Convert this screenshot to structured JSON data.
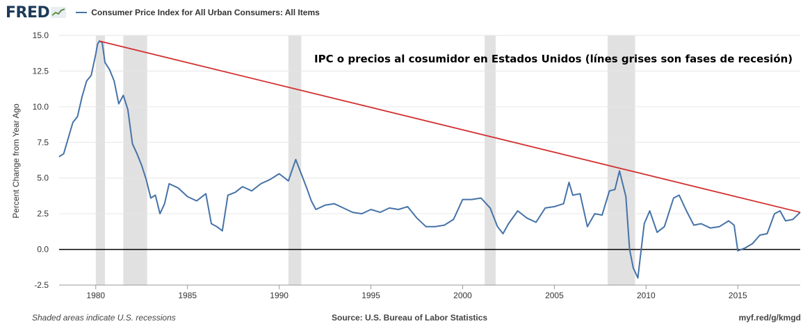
{
  "header": {
    "logo_text": "FRED",
    "logo_icon": "line-graph-icon"
  },
  "footer": {
    "note": "Shaded areas indicate U.S. recessions",
    "source": "Source: U.S. Bureau of Labor Statistics",
    "link": "myf.red/g/kmgd"
  },
  "colors": {
    "series": "#4572a7",
    "trend": "#d32f2f",
    "recession": "#e1e1e1",
    "zero_line": "#000000",
    "grid": "#e6e6e6"
  },
  "chart_data": {
    "type": "line",
    "title": "",
    "annotation": "IPC o precios al cosumidor en Estados Unidos (línes grises son fases de recesión)",
    "xlabel": "",
    "ylabel": "Percent Change from Year Ago",
    "xlim": [
      1978.0,
      2018.4
    ],
    "ylim": [
      -2.5,
      15.0
    ],
    "yticks": [
      -2.5,
      0.0,
      2.5,
      5.0,
      7.5,
      10.0,
      12.5,
      15.0
    ],
    "ytick_labels": [
      "-2.5",
      "0.0",
      "2.5",
      "5.0",
      "7.5",
      "10.0",
      "12.5",
      "15.0"
    ],
    "xticks": [
      1980,
      1985,
      1990,
      1995,
      2000,
      2005,
      2010,
      2015
    ],
    "xtick_labels": [
      "1980",
      "1985",
      "1990",
      "1995",
      "2000",
      "2005",
      "2010",
      "2015"
    ],
    "grid": "horizontal",
    "legend": "top-left",
    "recessions": [
      [
        1980.0,
        1980.5
      ],
      [
        1981.5,
        1982.8
      ],
      [
        1990.5,
        1991.2
      ],
      [
        2001.2,
        2001.8
      ],
      [
        2007.9,
        2009.4
      ]
    ],
    "zero_line": 0.0,
    "trend_line": {
      "x": [
        1980.2,
        2018.4
      ],
      "y": [
        14.6,
        2.6
      ]
    },
    "series": [
      {
        "name": "Consumer Price Index for All Urban Consumers: All Items",
        "x": [
          1978.0,
          1978.25,
          1978.5,
          1978.75,
          1979.0,
          1979.25,
          1979.5,
          1979.75,
          1980.0,
          1980.1,
          1980.2,
          1980.35,
          1980.5,
          1980.75,
          1981.0,
          1981.25,
          1981.5,
          1981.75,
          1982.0,
          1982.25,
          1982.5,
          1982.75,
          1983.0,
          1983.25,
          1983.5,
          1983.75,
          1984.0,
          1984.5,
          1985.0,
          1985.5,
          1986.0,
          1986.3,
          1986.6,
          1986.9,
          1987.2,
          1987.6,
          1988.0,
          1988.5,
          1989.0,
          1989.5,
          1990.0,
          1990.5,
          1990.9,
          1991.2,
          1991.5,
          1991.75,
          1992.0,
          1992.5,
          1993.0,
          1993.5,
          1994.0,
          1994.5,
          1995.0,
          1995.5,
          1996.0,
          1996.5,
          1997.0,
          1997.5,
          1998.0,
          1998.5,
          1999.0,
          1999.5,
          2000.0,
          2000.5,
          2001.0,
          2001.5,
          2001.9,
          2002.2,
          2002.5,
          2003.0,
          2003.5,
          2004.0,
          2004.5,
          2005.0,
          2005.5,
          2005.8,
          2006.0,
          2006.4,
          2006.8,
          2007.2,
          2007.6,
          2008.0,
          2008.3,
          2008.55,
          2008.9,
          2009.1,
          2009.3,
          2009.55,
          2009.9,
          2010.2,
          2010.6,
          2011.0,
          2011.5,
          2011.8,
          2012.2,
          2012.6,
          2013.0,
          2013.5,
          2014.0,
          2014.5,
          2014.8,
          2015.0,
          2015.4,
          2015.8,
          2016.2,
          2016.6,
          2017.0,
          2017.3,
          2017.6,
          2018.0,
          2018.4
        ],
        "values": [
          6.5,
          6.7,
          7.8,
          8.9,
          9.3,
          10.7,
          11.8,
          12.2,
          13.7,
          14.4,
          14.6,
          14.5,
          13.1,
          12.6,
          11.8,
          10.2,
          10.8,
          9.8,
          7.4,
          6.7,
          5.9,
          4.9,
          3.6,
          3.8,
          2.5,
          3.2,
          4.6,
          4.3,
          3.7,
          3.4,
          3.9,
          1.8,
          1.6,
          1.3,
          3.8,
          4.0,
          4.4,
          4.1,
          4.6,
          4.9,
          5.3,
          4.8,
          6.3,
          5.3,
          4.3,
          3.4,
          2.8,
          3.1,
          3.2,
          2.9,
          2.6,
          2.5,
          2.8,
          2.6,
          2.9,
          2.8,
          3.0,
          2.2,
          1.6,
          1.6,
          1.7,
          2.1,
          3.5,
          3.5,
          3.6,
          2.9,
          1.6,
          1.1,
          1.8,
          2.7,
          2.2,
          1.9,
          2.9,
          3.0,
          3.2,
          4.7,
          3.8,
          3.9,
          1.6,
          2.5,
          2.4,
          4.1,
          4.2,
          5.5,
          3.7,
          0.0,
          -1.3,
          -2.0,
          1.8,
          2.7,
          1.2,
          1.6,
          3.6,
          3.8,
          2.7,
          1.7,
          1.8,
          1.5,
          1.6,
          2.0,
          1.7,
          -0.1,
          0.1,
          0.4,
          1.0,
          1.1,
          2.5,
          2.7,
          2.0,
          2.1,
          2.6
        ]
      }
    ]
  }
}
